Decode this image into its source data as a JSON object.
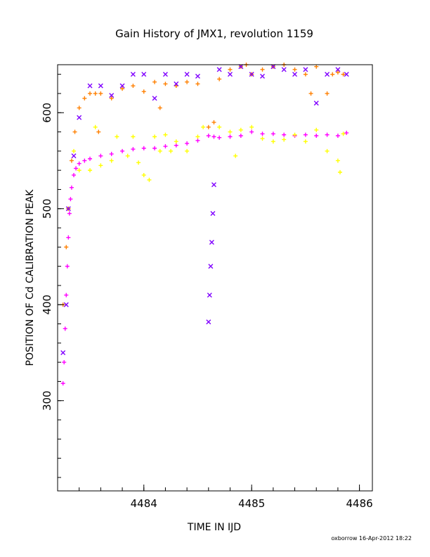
{
  "chart_data": {
    "type": "scatter",
    "title": "Gain History of JMX1, revolution 1159",
    "xlabel": "TIME IN IJD",
    "ylabel": "POSITION OF Cd CALIBRATION PEAK",
    "xlim": [
      4483.2,
      4486.12
    ],
    "ylim": [
      206,
      650
    ],
    "xticks": [
      4484,
      4485,
      4486
    ],
    "yticks": [
      300,
      400,
      500,
      600
    ],
    "footer": "oxborrow 16-Apr-2012 18:22",
    "grid": false,
    "series": [
      {
        "color": "#ff00ff",
        "marker": "plus",
        "points": [
          [
            4483.25,
            318
          ],
          [
            4483.26,
            340
          ],
          [
            4483.27,
            375
          ],
          [
            4483.28,
            410
          ],
          [
            4483.29,
            440
          ],
          [
            4483.3,
            470
          ],
          [
            4483.31,
            495
          ],
          [
            4483.32,
            510
          ],
          [
            4483.33,
            522
          ],
          [
            4483.35,
            535
          ],
          [
            4483.37,
            542
          ],
          [
            4483.4,
            547
          ],
          [
            4483.45,
            550
          ],
          [
            4483.5,
            552
          ],
          [
            4483.6,
            555
          ],
          [
            4483.7,
            557
          ],
          [
            4483.8,
            560
          ],
          [
            4483.9,
            562
          ],
          [
            4484.0,
            563
          ],
          [
            4484.1,
            563
          ],
          [
            4484.2,
            565
          ],
          [
            4484.3,
            566
          ],
          [
            4484.4,
            568
          ],
          [
            4484.5,
            571
          ],
          [
            4484.6,
            576
          ],
          [
            4484.65,
            575
          ],
          [
            4484.7,
            574
          ],
          [
            4484.8,
            575
          ],
          [
            4484.9,
            576
          ],
          [
            4485.0,
            580
          ],
          [
            4485.1,
            578
          ],
          [
            4485.2,
            578
          ],
          [
            4485.3,
            577
          ],
          [
            4485.4,
            576
          ],
          [
            4485.5,
            577
          ],
          [
            4485.6,
            576
          ],
          [
            4485.7,
            577
          ],
          [
            4485.8,
            576
          ],
          [
            4485.88,
            579
          ]
        ]
      },
      {
        "color": "#ffff00",
        "marker": "plus",
        "points": [
          [
            4483.3,
            500
          ],
          [
            4483.35,
            560
          ],
          [
            4483.4,
            540
          ],
          [
            4483.5,
            540
          ],
          [
            4483.55,
            585
          ],
          [
            4483.6,
            545
          ],
          [
            4483.7,
            550
          ],
          [
            4483.75,
            575
          ],
          [
            4483.85,
            555
          ],
          [
            4483.9,
            575
          ],
          [
            4483.95,
            548
          ],
          [
            4484.0,
            535
          ],
          [
            4484.05,
            530
          ],
          [
            4484.1,
            575
          ],
          [
            4484.15,
            560
          ],
          [
            4484.2,
            577
          ],
          [
            4484.25,
            560
          ],
          [
            4484.3,
            570
          ],
          [
            4484.4,
            560
          ],
          [
            4484.5,
            575
          ],
          [
            4484.55,
            585
          ],
          [
            4484.7,
            585
          ],
          [
            4484.8,
            580
          ],
          [
            4484.85,
            555
          ],
          [
            4484.9,
            582
          ],
          [
            4485.0,
            585
          ],
          [
            4485.1,
            573
          ],
          [
            4485.2,
            570
          ],
          [
            4485.3,
            572
          ],
          [
            4485.4,
            577
          ],
          [
            4485.5,
            570
          ],
          [
            4485.6,
            582
          ],
          [
            4485.7,
            560
          ],
          [
            4485.8,
            550
          ],
          [
            4485.82,
            538
          ],
          [
            4485.85,
            578
          ]
        ]
      },
      {
        "color": "#ff8000",
        "marker": "plus",
        "points": [
          [
            4483.25,
            400
          ],
          [
            4483.28,
            460
          ],
          [
            4483.3,
            500
          ],
          [
            4483.33,
            550
          ],
          [
            4483.36,
            580
          ],
          [
            4483.4,
            605
          ],
          [
            4483.45,
            615
          ],
          [
            4483.5,
            620
          ],
          [
            4483.55,
            620
          ],
          [
            4483.58,
            580
          ],
          [
            4483.6,
            620
          ],
          [
            4483.7,
            615
          ],
          [
            4483.8,
            625
          ],
          [
            4483.9,
            628
          ],
          [
            4484.0,
            622
          ],
          [
            4484.1,
            632
          ],
          [
            4484.15,
            605
          ],
          [
            4484.2,
            630
          ],
          [
            4484.3,
            628
          ],
          [
            4484.4,
            632
          ],
          [
            4484.5,
            630
          ],
          [
            4484.6,
            585
          ],
          [
            4484.65,
            590
          ],
          [
            4484.7,
            635
          ],
          [
            4484.8,
            645
          ],
          [
            4484.9,
            648
          ],
          [
            4484.95,
            650
          ],
          [
            4485.0,
            640
          ],
          [
            4485.1,
            645
          ],
          [
            4485.2,
            648
          ],
          [
            4485.3,
            650
          ],
          [
            4485.4,
            645
          ],
          [
            4485.5,
            640
          ],
          [
            4485.55,
            620
          ],
          [
            4485.6,
            648
          ],
          [
            4485.7,
            620
          ],
          [
            4485.75,
            640
          ],
          [
            4485.8,
            642
          ],
          [
            4485.85,
            640
          ]
        ]
      },
      {
        "color": "#8000ff",
        "marker": "x",
        "points": [
          [
            4483.25,
            350
          ],
          [
            4483.28,
            400
          ],
          [
            4483.3,
            500
          ],
          [
            4483.35,
            555
          ],
          [
            4483.4,
            595
          ],
          [
            4483.5,
            628
          ],
          [
            4483.6,
            628
          ],
          [
            4483.7,
            618
          ],
          [
            4483.8,
            628
          ],
          [
            4483.9,
            640
          ],
          [
            4484.0,
            640
          ],
          [
            4484.1,
            615
          ],
          [
            4484.2,
            640
          ],
          [
            4484.3,
            630
          ],
          [
            4484.4,
            640
          ],
          [
            4484.5,
            638
          ],
          [
            4484.6,
            382
          ],
          [
            4484.61,
            410
          ],
          [
            4484.62,
            440
          ],
          [
            4484.63,
            465
          ],
          [
            4484.64,
            495
          ],
          [
            4484.65,
            525
          ],
          [
            4484.7,
            645
          ],
          [
            4484.8,
            640
          ],
          [
            4484.9,
            648
          ],
          [
            4485.0,
            640
          ],
          [
            4485.1,
            638
          ],
          [
            4485.2,
            648
          ],
          [
            4485.3,
            645
          ],
          [
            4485.4,
            640
          ],
          [
            4485.5,
            645
          ],
          [
            4485.6,
            610
          ],
          [
            4485.7,
            640
          ],
          [
            4485.8,
            645
          ],
          [
            4485.88,
            640
          ]
        ]
      }
    ]
  }
}
